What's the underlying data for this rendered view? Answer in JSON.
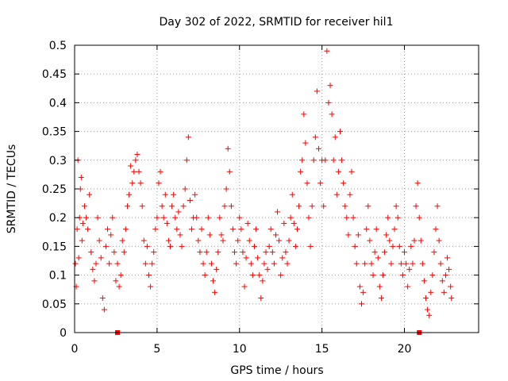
{
  "chart_data": {
    "type": "scatter",
    "title": "Day 302 of 2022, SRMTID for receiver hil1",
    "xlabel": "GPS time / hours",
    "ylabel": "SRMTID / TECUs",
    "xlim": [
      0,
      24.5
    ],
    "ylim": [
      0,
      0.5
    ],
    "xticks": [
      0,
      5,
      10,
      15,
      20
    ],
    "yticks": [
      0,
      0.05,
      0.1,
      0.15,
      0.2,
      0.25,
      0.3,
      0.35,
      0.4,
      0.45,
      0.5
    ],
    "x_tick_labels": [
      "0",
      "5",
      "10",
      "15",
      "20"
    ],
    "y_tick_labels": [
      "0",
      "0.05",
      "0.1",
      "0.15",
      "0.2",
      "0.25",
      "0.3",
      "0.35",
      "0.4",
      "0.45",
      "0.5"
    ],
    "grid": true,
    "marker": "+",
    "marker_color": "#ff0000",
    "axis_markers": [
      {
        "x": 2.6,
        "y": 0
      },
      {
        "x": 20.9,
        "y": 0
      }
    ],
    "series": [
      {
        "points": [
          [
            0.05,
            0.12
          ],
          [
            0.1,
            0.08
          ],
          [
            0.15,
            0.18
          ],
          [
            0.2,
            0.3
          ],
          [
            0.25,
            0.13
          ],
          [
            0.3,
            0.2
          ],
          [
            0.35,
            0.25
          ],
          [
            0.4,
            0.27
          ],
          [
            0.45,
            0.16
          ],
          [
            0.5,
            0.19
          ],
          [
            0.6,
            0.22
          ],
          [
            0.7,
            0.2
          ],
          [
            0.8,
            0.18
          ],
          [
            0.9,
            0.24
          ],
          [
            1.0,
            0.14
          ],
          [
            1.1,
            0.11
          ],
          [
            1.2,
            0.09
          ],
          [
            1.3,
            0.12
          ],
          [
            1.4,
            0.2
          ],
          [
            1.5,
            0.16
          ],
          [
            1.6,
            0.13
          ],
          [
            1.7,
            0.06
          ],
          [
            1.8,
            0.04
          ],
          [
            1.9,
            0.15
          ],
          [
            2.0,
            0.18
          ],
          [
            2.1,
            0.12
          ],
          [
            2.2,
            0.17
          ],
          [
            2.3,
            0.2
          ],
          [
            2.4,
            0.14
          ],
          [
            2.5,
            0.09
          ],
          [
            2.6,
            0.12
          ],
          [
            2.7,
            0.08
          ],
          [
            2.8,
            0.1
          ],
          [
            2.9,
            0.16
          ],
          [
            3.0,
            0.14
          ],
          [
            3.1,
            0.18
          ],
          [
            3.2,
            0.22
          ],
          [
            3.3,
            0.24
          ],
          [
            3.4,
            0.29
          ],
          [
            3.5,
            0.26
          ],
          [
            3.6,
            0.28
          ],
          [
            3.7,
            0.3
          ],
          [
            3.8,
            0.31
          ],
          [
            3.9,
            0.28
          ],
          [
            4.0,
            0.26
          ],
          [
            4.1,
            0.22
          ],
          [
            4.2,
            0.16
          ],
          [
            4.3,
            0.12
          ],
          [
            4.4,
            0.15
          ],
          [
            4.5,
            0.1
          ],
          [
            4.6,
            0.08
          ],
          [
            4.7,
            0.12
          ],
          [
            4.8,
            0.14
          ],
          [
            4.9,
            0.18
          ],
          [
            5.0,
            0.2
          ],
          [
            5.1,
            0.26
          ],
          [
            5.2,
            0.28
          ],
          [
            5.3,
            0.22
          ],
          [
            5.4,
            0.2
          ],
          [
            5.5,
            0.24
          ],
          [
            5.6,
            0.19
          ],
          [
            5.7,
            0.16
          ],
          [
            5.8,
            0.15
          ],
          [
            5.9,
            0.22
          ],
          [
            6.0,
            0.24
          ],
          [
            6.1,
            0.2
          ],
          [
            6.2,
            0.18
          ],
          [
            6.3,
            0.21
          ],
          [
            6.4,
            0.17
          ],
          [
            6.5,
            0.15
          ],
          [
            6.6,
            0.22
          ],
          [
            6.7,
            0.25
          ],
          [
            6.8,
            0.3
          ],
          [
            6.9,
            0.34
          ],
          [
            7.0,
            0.23
          ],
          [
            7.1,
            0.18
          ],
          [
            7.2,
            0.2
          ],
          [
            7.3,
            0.24
          ],
          [
            7.4,
            0.2
          ],
          [
            7.5,
            0.16
          ],
          [
            7.6,
            0.14
          ],
          [
            7.7,
            0.18
          ],
          [
            7.8,
            0.12
          ],
          [
            7.9,
            0.1
          ],
          [
            8.0,
            0.14
          ],
          [
            8.1,
            0.2
          ],
          [
            8.2,
            0.17
          ],
          [
            8.3,
            0.12
          ],
          [
            8.4,
            0.09
          ],
          [
            8.5,
            0.07
          ],
          [
            8.6,
            0.11
          ],
          [
            8.7,
            0.14
          ],
          [
            8.8,
            0.2
          ],
          [
            8.9,
            0.17
          ],
          [
            9.0,
            0.16
          ],
          [
            9.1,
            0.22
          ],
          [
            9.2,
            0.25
          ],
          [
            9.3,
            0.32
          ],
          [
            9.4,
            0.28
          ],
          [
            9.5,
            0.22
          ],
          [
            9.6,
            0.18
          ],
          [
            9.7,
            0.14
          ],
          [
            9.8,
            0.12
          ],
          [
            9.9,
            0.16
          ],
          [
            10.0,
            0.2
          ],
          [
            10.1,
            0.18
          ],
          [
            10.2,
            0.14
          ],
          [
            10.3,
            0.08
          ],
          [
            10.4,
            0.13
          ],
          [
            10.5,
            0.19
          ],
          [
            10.6,
            0.16
          ],
          [
            10.7,
            0.12
          ],
          [
            10.8,
            0.1
          ],
          [
            10.9,
            0.15
          ],
          [
            11.0,
            0.18
          ],
          [
            11.1,
            0.13
          ],
          [
            11.2,
            0.1
          ],
          [
            11.3,
            0.06
          ],
          [
            11.4,
            0.09
          ],
          [
            11.5,
            0.12
          ],
          [
            11.6,
            0.14
          ],
          [
            11.7,
            0.11
          ],
          [
            11.8,
            0.15
          ],
          [
            11.9,
            0.18
          ],
          [
            12.0,
            0.14
          ],
          [
            12.1,
            0.12
          ],
          [
            12.2,
            0.17
          ],
          [
            12.3,
            0.21
          ],
          [
            12.4,
            0.16
          ],
          [
            12.5,
            0.1
          ],
          [
            12.6,
            0.13
          ],
          [
            12.7,
            0.19
          ],
          [
            12.8,
            0.14
          ],
          [
            12.9,
            0.12
          ],
          [
            13.0,
            0.16
          ],
          [
            13.1,
            0.2
          ],
          [
            13.2,
            0.24
          ],
          [
            13.3,
            0.19
          ],
          [
            13.4,
            0.15
          ],
          [
            13.5,
            0.18
          ],
          [
            13.6,
            0.22
          ],
          [
            13.7,
            0.28
          ],
          [
            13.8,
            0.3
          ],
          [
            13.9,
            0.38
          ],
          [
            14.0,
            0.33
          ],
          [
            14.1,
            0.26
          ],
          [
            14.2,
            0.2
          ],
          [
            14.3,
            0.15
          ],
          [
            14.4,
            0.22
          ],
          [
            14.5,
            0.3
          ],
          [
            14.6,
            0.34
          ],
          [
            14.7,
            0.42
          ],
          [
            14.8,
            0.32
          ],
          [
            14.9,
            0.26
          ],
          [
            15.0,
            0.3
          ],
          [
            15.1,
            0.22
          ],
          [
            15.2,
            0.3
          ],
          [
            15.3,
            0.49
          ],
          [
            15.4,
            0.4
          ],
          [
            15.5,
            0.43
          ],
          [
            15.6,
            0.38
          ],
          [
            15.7,
            0.3
          ],
          [
            15.8,
            0.34
          ],
          [
            15.9,
            0.24
          ],
          [
            16.0,
            0.28
          ],
          [
            16.1,
            0.35
          ],
          [
            16.2,
            0.3
          ],
          [
            16.3,
            0.26
          ],
          [
            16.4,
            0.22
          ],
          [
            16.5,
            0.2
          ],
          [
            16.6,
            0.17
          ],
          [
            16.7,
            0.24
          ],
          [
            16.8,
            0.28
          ],
          [
            16.9,
            0.2
          ],
          [
            17.0,
            0.15
          ],
          [
            17.1,
            0.12
          ],
          [
            17.2,
            0.17
          ],
          [
            17.3,
            0.08
          ],
          [
            17.4,
            0.05
          ],
          [
            17.5,
            0.07
          ],
          [
            17.6,
            0.12
          ],
          [
            17.7,
            0.18
          ],
          [
            17.8,
            0.22
          ],
          [
            17.9,
            0.16
          ],
          [
            18.0,
            0.12
          ],
          [
            18.1,
            0.1
          ],
          [
            18.2,
            0.14
          ],
          [
            18.3,
            0.18
          ],
          [
            18.4,
            0.13
          ],
          [
            18.5,
            0.08
          ],
          [
            18.6,
            0.06
          ],
          [
            18.7,
            0.1
          ],
          [
            18.8,
            0.14
          ],
          [
            18.9,
            0.17
          ],
          [
            19.0,
            0.2
          ],
          [
            19.1,
            0.16
          ],
          [
            19.2,
            0.12
          ],
          [
            19.3,
            0.15
          ],
          [
            19.4,
            0.18
          ],
          [
            19.5,
            0.22
          ],
          [
            19.6,
            0.2
          ],
          [
            19.7,
            0.15
          ],
          [
            19.8,
            0.12
          ],
          [
            19.9,
            0.1
          ],
          [
            20.0,
            0.14
          ],
          [
            20.1,
            0.12
          ],
          [
            20.2,
            0.08
          ],
          [
            20.3,
            0.11
          ],
          [
            20.4,
            0.15
          ],
          [
            20.5,
            0.12
          ],
          [
            20.6,
            0.16
          ],
          [
            20.7,
            0.22
          ],
          [
            20.8,
            0.26
          ],
          [
            20.9,
            0.2
          ],
          [
            21.0,
            0.16
          ],
          [
            21.1,
            0.12
          ],
          [
            21.2,
            0.09
          ],
          [
            21.3,
            0.06
          ],
          [
            21.4,
            0.04
          ],
          [
            21.5,
            0.03
          ],
          [
            21.6,
            0.07
          ],
          [
            21.7,
            0.1
          ],
          [
            21.8,
            0.14
          ],
          [
            21.9,
            0.18
          ],
          [
            22.0,
            0.22
          ],
          [
            22.1,
            0.16
          ],
          [
            22.2,
            0.12
          ],
          [
            22.3,
            0.09
          ],
          [
            22.4,
            0.07
          ],
          [
            22.5,
            0.1
          ],
          [
            22.6,
            0.13
          ],
          [
            22.7,
            0.11
          ],
          [
            22.8,
            0.08
          ],
          [
            22.85,
            0.06
          ]
        ]
      }
    ]
  }
}
